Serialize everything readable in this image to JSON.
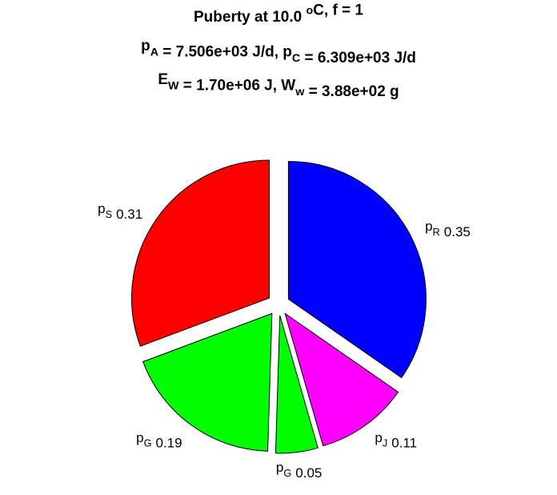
{
  "chart_data": {
    "type": "pie",
    "title": [
      [
        "Puberty at 10.0 ",
        {
          "sup": "o"
        },
        "C, f = 1"
      ],
      [
        "p",
        {
          "sub": "A"
        },
        " = 7.506e+03 J/d,  p",
        {
          "sub": "C"
        },
        " = 6.309e+03 J/d"
      ],
      [
        "E",
        {
          "sub": "W"
        },
        " = 1.70e+06 J, W",
        {
          "sub": "w"
        },
        " = 3.88e+02 g"
      ]
    ],
    "categories": [
      [
        "p",
        {
          "sub": "R"
        }
      ],
      [
        "p",
        {
          "sub": "J"
        }
      ],
      [
        "p",
        {
          "sub": "G"
        }
      ],
      [
        "p",
        {
          "sub": "G"
        }
      ],
      [
        "p",
        {
          "sub": "S"
        }
      ]
    ],
    "values": [
      0.35,
      0.11,
      0.05,
      0.19,
      0.31
    ],
    "colors": [
      "#0000ff",
      "#ff00ff",
      "#00ff00",
      "#00ff00",
      "#ff0000"
    ],
    "explode": true
  }
}
